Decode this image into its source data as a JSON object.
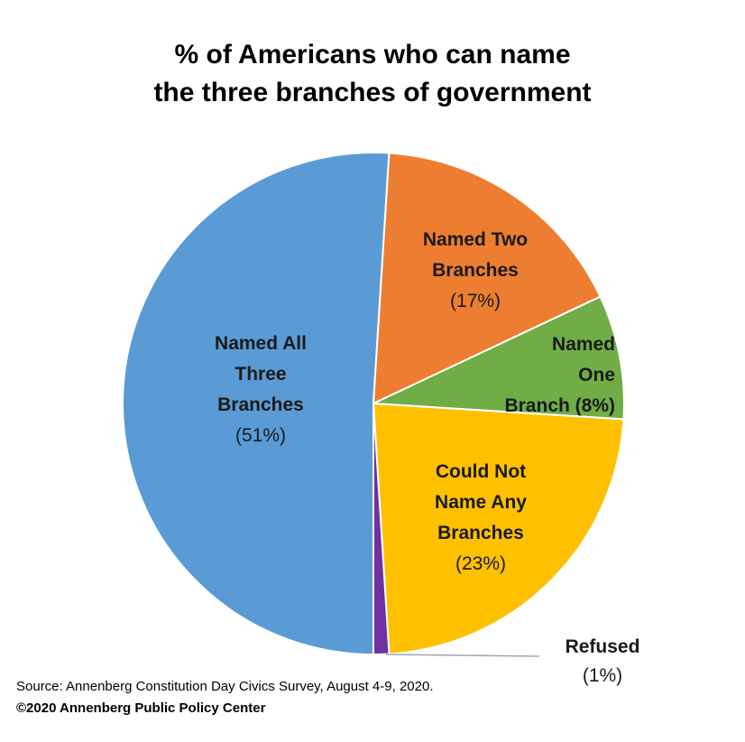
{
  "chart_data": {
    "type": "pie",
    "title_lines": [
      "% of Americans who can name",
      "the three branches of government"
    ],
    "start_angle_deg": 180,
    "slices": [
      {
        "name": "Named All Three Branches",
        "value": 51,
        "color": "#5B9BD5",
        "label_lines": [
          "Named All",
          "Three",
          "Branches",
          "(51%)"
        ]
      },
      {
        "name": "Named Two Branches",
        "value": 17,
        "color": "#ED7D31",
        "label_lines": [
          "Named Two",
          "Branches",
          "(17%)"
        ]
      },
      {
        "name": "Named One Branch",
        "value": 8,
        "color": "#70AD47",
        "label_lines": [
          "Named",
          "One",
          "Branch (8%)"
        ]
      },
      {
        "name": "Could Not Name Any Branches",
        "value": 23,
        "color": "#FFC000",
        "label_lines": [
          "Could Not",
          "Name Any",
          "Branches",
          "(23%)"
        ]
      },
      {
        "name": "Refused",
        "value": 1,
        "color": "#7030A0",
        "label_lines": [
          "Refused",
          "(1%)"
        ]
      }
    ]
  },
  "footer": {
    "source": "Source: Annenberg Constitution Day Civics Survey, August 4-9, 2020.",
    "copyright": "©2020 Annenberg Public Policy Center"
  }
}
